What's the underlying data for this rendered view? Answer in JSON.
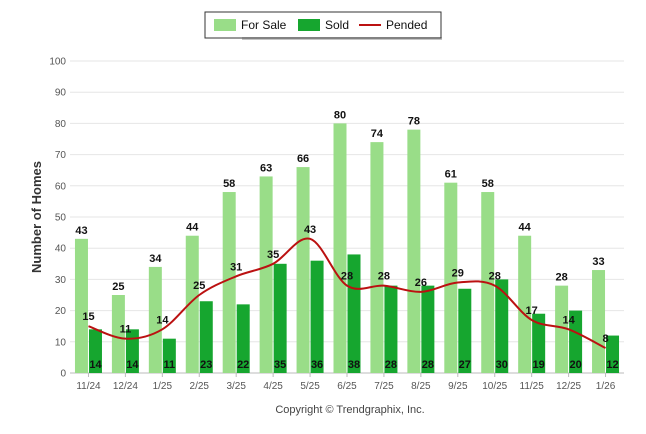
{
  "chart_data": {
    "type": "bar",
    "ylabel": "Number of Homes",
    "ylim": [
      0,
      100
    ],
    "yticks": [
      0,
      10,
      20,
      30,
      40,
      50,
      60,
      70,
      80,
      90,
      100
    ],
    "grid": true,
    "legend_position": "top-center",
    "categories": [
      "11/24",
      "12/24",
      "1/25",
      "2/25",
      "3/25",
      "4/25",
      "5/25",
      "6/25",
      "7/25",
      "8/25",
      "9/25",
      "10/25",
      "11/25",
      "12/25",
      "1/26"
    ],
    "series": [
      {
        "name": "For Sale",
        "kind": "bar",
        "color": "#99dd88",
        "values": [
          43,
          25,
          34,
          44,
          58,
          63,
          66,
          80,
          74,
          78,
          61,
          58,
          44,
          28,
          33
        ]
      },
      {
        "name": "Sold",
        "kind": "bar",
        "color": "#16a62f",
        "values": [
          14,
          14,
          11,
          23,
          22,
          35,
          36,
          38,
          28,
          28,
          27,
          30,
          19,
          20,
          12
        ]
      },
      {
        "name": "Pended",
        "kind": "line",
        "color": "#bb1111",
        "values": [
          15,
          11,
          14,
          25,
          31,
          35,
          43,
          28,
          28,
          26,
          29,
          28,
          17,
          14,
          8
        ]
      }
    ]
  },
  "footer": "Copyright © Trendgraphix, Inc."
}
